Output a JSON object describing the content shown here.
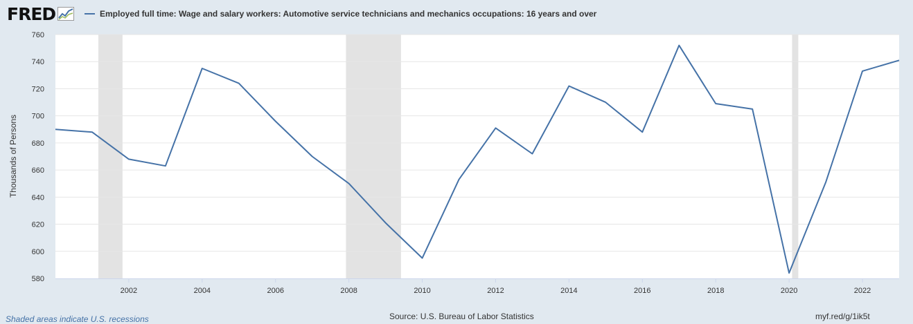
{
  "header": {
    "logo_text": "FRED",
    "logo_icon": "line-chart-icon",
    "legend_label": "Employed full time: Wage and salary workers: Automotive service technicians and mechanics occupations: 16 years and over"
  },
  "footer": {
    "recession_note": "Shaded areas indicate U.S. recessions",
    "source": "Source: U.S. Bureau of Labor Statistics",
    "short_url": "myf.red/g/1ik5t"
  },
  "colors": {
    "series": "#4572a7",
    "recession": "#e3e3e3",
    "plot_bg": "#ffffff",
    "page_bg": "#e1e9f0",
    "grid": "#e6e6e6"
  },
  "chart_data": {
    "type": "line",
    "title": "",
    "xlabel": "",
    "ylabel": "Thousands of Persons",
    "xlim": [
      2000,
      2023
    ],
    "ylim": [
      580,
      760
    ],
    "yticks": [
      580,
      600,
      620,
      640,
      660,
      680,
      700,
      720,
      740,
      760
    ],
    "xticks": [
      2002,
      2004,
      2006,
      2008,
      2010,
      2012,
      2014,
      2016,
      2018,
      2020,
      2022
    ],
    "grid": "horizontal",
    "recessions": [
      [
        2001.17,
        2001.83
      ],
      [
        2007.92,
        2009.42
      ],
      [
        2020.08,
        2020.25
      ]
    ],
    "series": [
      {
        "name": "Employed full time: Wage and salary workers: Automotive service technicians and mechanics occupations: 16 years and over",
        "x": [
          2000,
          2001,
          2002,
          2003,
          2004,
          2005,
          2006,
          2007,
          2008,
          2009,
          2010,
          2011,
          2012,
          2013,
          2014,
          2015,
          2016,
          2017,
          2018,
          2019,
          2020,
          2021,
          2022,
          2023
        ],
        "values": [
          690,
          688,
          668,
          663,
          735,
          724,
          696,
          670,
          650,
          621,
          595,
          653,
          691,
          672,
          722,
          710,
          688,
          752,
          709,
          705,
          584,
          651,
          733,
          741
        ]
      }
    ]
  }
}
